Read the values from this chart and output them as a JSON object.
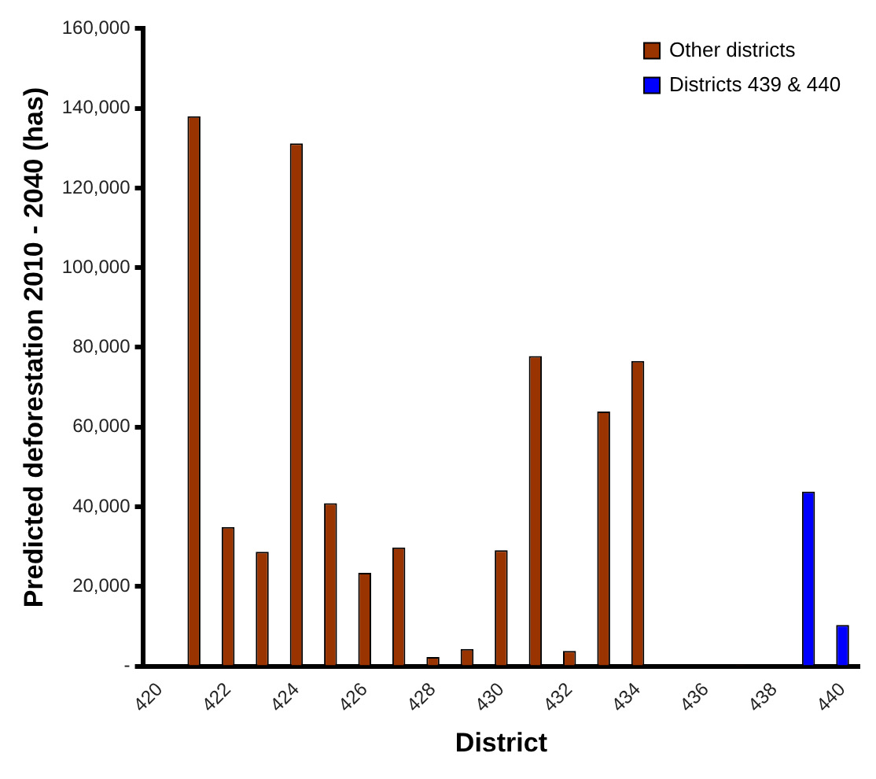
{
  "chart_data": {
    "type": "bar",
    "xlabel": "District",
    "ylabel": "Predicted deforestation 2010 - 2040 (has)",
    "categories": [
      "420",
      null,
      "422",
      null,
      "424",
      null,
      "426",
      null,
      "428",
      null,
      "430",
      null,
      "432",
      null,
      "434",
      null,
      "436",
      null,
      "438",
      null,
      "440"
    ],
    "series": [
      {
        "name": "Other districts",
        "color": "#993300",
        "values": [
          0,
          138000,
          34900,
          28700,
          131200,
          40900,
          23400,
          29800,
          2300,
          4300,
          29100,
          77800,
          3800,
          63900,
          76600,
          0,
          0,
          300,
          0,
          null,
          null
        ]
      },
      {
        "name": "Districts 439 & 440",
        "color": "#0000ff",
        "values": [
          null,
          null,
          null,
          null,
          null,
          null,
          null,
          null,
          null,
          null,
          null,
          null,
          null,
          null,
          null,
          null,
          null,
          null,
          null,
          43800,
          10300
        ]
      }
    ],
    "ylim": [
      0,
      160000
    ],
    "yticks": [
      {
        "value": 0,
        "label": "-"
      },
      {
        "value": 20000,
        "label": "20,000"
      },
      {
        "value": 40000,
        "label": "40,000"
      },
      {
        "value": 60000,
        "label": "60,000"
      },
      {
        "value": 80000,
        "label": "80,000"
      },
      {
        "value": 100000,
        "label": "100,000"
      },
      {
        "value": 120000,
        "label": "120,000"
      },
      {
        "value": 140000,
        "label": "140,000"
      },
      {
        "value": 160000,
        "label": "160,000"
      }
    ],
    "grid": false,
    "legend": "top right"
  }
}
